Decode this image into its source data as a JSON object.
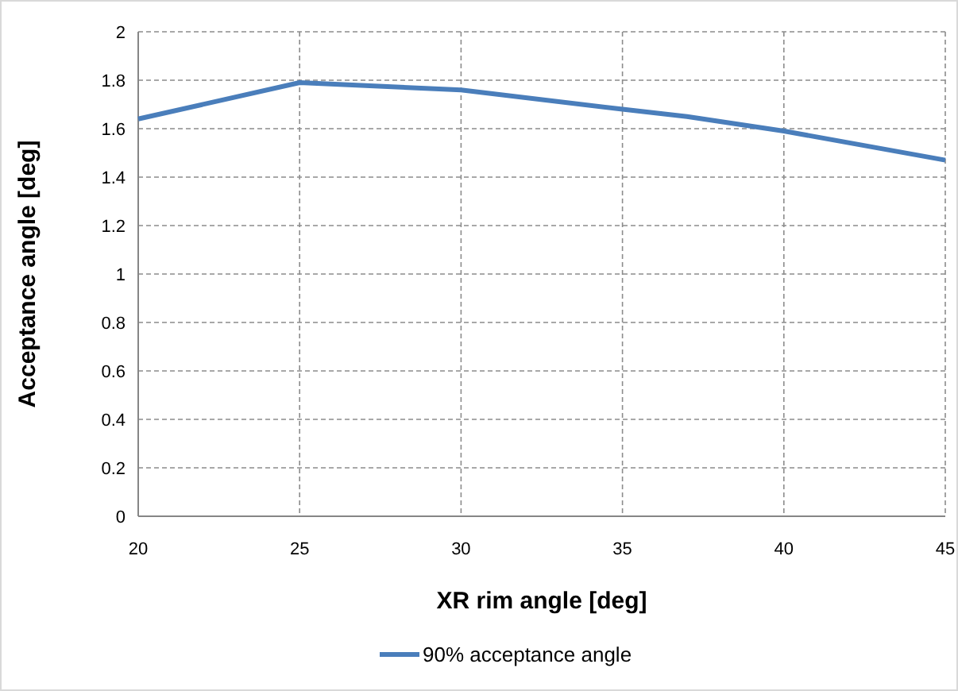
{
  "chart_data": {
    "type": "line",
    "xlabel": "XR rim angle [deg]",
    "ylabel": "Acceptance angle [deg]",
    "x": [
      20,
      25,
      30,
      35,
      37,
      40,
      45
    ],
    "series": [
      {
        "name": "90% acceptance angle",
        "color": "#4a7ebb",
        "values": [
          1.64,
          1.79,
          1.76,
          1.68,
          1.65,
          1.59,
          1.47
        ]
      }
    ],
    "xlim": [
      20,
      45
    ],
    "xticks": [
      20,
      25,
      30,
      35,
      40,
      45
    ],
    "ylim": [
      0,
      2
    ],
    "yticks": [
      0,
      0.2,
      0.4,
      0.6,
      0.8,
      1,
      1.2,
      1.4,
      1.6,
      1.8,
      2
    ],
    "grid": true,
    "legend": "bottom",
    "marker": "none",
    "line_style": "solid"
  }
}
